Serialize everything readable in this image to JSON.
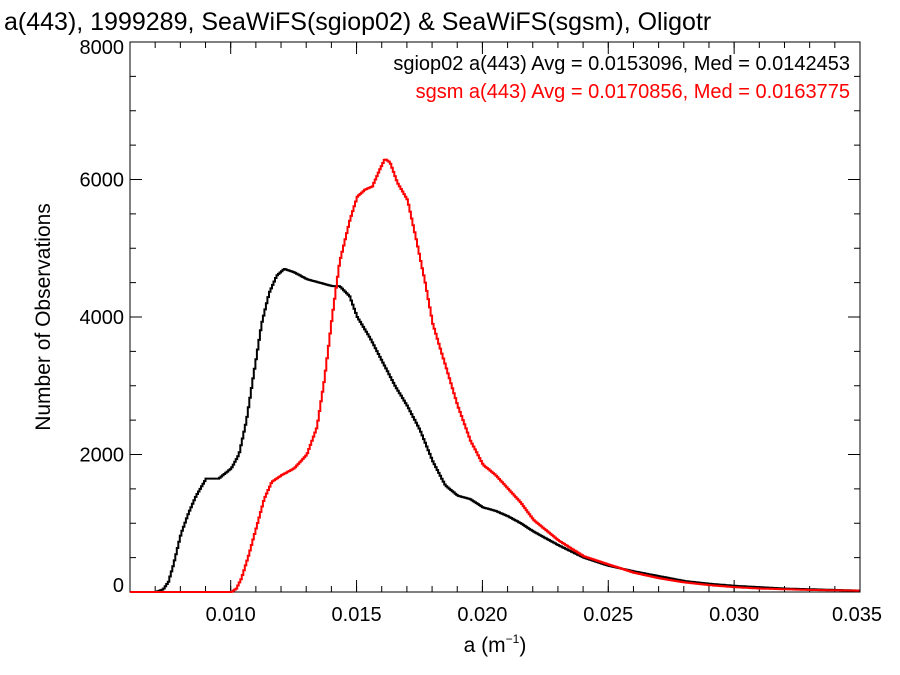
{
  "chart_data": {
    "type": "line",
    "title": "a(443), 1999289, SeaWiFS(sgiop02) & SeaWiFS(sgsm), Oligotr",
    "xlabel": "a (m",
    "xlabel_sup": "−1",
    "xlabel_close": ")",
    "ylabel": "Number of Observations",
    "xlim": [
      0.006,
      0.035
    ],
    "ylim": [
      0,
      8000
    ],
    "xticks": [
      {
        "v": 0.01,
        "label": "0.010"
      },
      {
        "v": 0.015,
        "label": "0.015"
      },
      {
        "v": 0.02,
        "label": "0.020"
      },
      {
        "v": 0.025,
        "label": "0.025"
      },
      {
        "v": 0.03,
        "label": "0.030"
      },
      {
        "v": 0.035,
        "label": "0.035"
      }
    ],
    "yticks": [
      {
        "v": 0,
        "label": "0"
      },
      {
        "v": 2000,
        "label": "2000"
      },
      {
        "v": 4000,
        "label": "4000"
      },
      {
        "v": 6000,
        "label": "6000"
      },
      {
        "v": 8000,
        "label": "8000"
      }
    ],
    "x_minor_step": 0.001,
    "y_minor_step": 500,
    "grid": false,
    "legend_position": "top-right",
    "series": [
      {
        "name": "sgiop02",
        "legend": "sgiop02 a(443) Avg = 0.0153096, Med = 0.0142453",
        "color": "#000000",
        "points": [
          [
            0.006,
            0
          ],
          [
            0.007,
            0
          ],
          [
            0.0073,
            40
          ],
          [
            0.0075,
            150
          ],
          [
            0.0077,
            400
          ],
          [
            0.008,
            850
          ],
          [
            0.0083,
            1150
          ],
          [
            0.0086,
            1400
          ],
          [
            0.009,
            1650
          ],
          [
            0.0095,
            1650
          ],
          [
            0.01,
            1800
          ],
          [
            0.0103,
            2000
          ],
          [
            0.0106,
            2500
          ],
          [
            0.0109,
            3200
          ],
          [
            0.0112,
            3900
          ],
          [
            0.0115,
            4350
          ],
          [
            0.0118,
            4600
          ],
          [
            0.0121,
            4700
          ],
          [
            0.0125,
            4650
          ],
          [
            0.013,
            4550
          ],
          [
            0.0135,
            4500
          ],
          [
            0.014,
            4450
          ],
          [
            0.0143,
            4450
          ],
          [
            0.0147,
            4300
          ],
          [
            0.015,
            4000
          ],
          [
            0.0155,
            3700
          ],
          [
            0.016,
            3350
          ],
          [
            0.0165,
            3000
          ],
          [
            0.017,
            2700
          ],
          [
            0.0175,
            2350
          ],
          [
            0.018,
            1900
          ],
          [
            0.0185,
            1550
          ],
          [
            0.019,
            1400
          ],
          [
            0.0195,
            1350
          ],
          [
            0.02,
            1230
          ],
          [
            0.0205,
            1180
          ],
          [
            0.021,
            1100
          ],
          [
            0.0215,
            1000
          ],
          [
            0.022,
            880
          ],
          [
            0.023,
            680
          ],
          [
            0.024,
            500
          ],
          [
            0.025,
            380
          ],
          [
            0.026,
            300
          ],
          [
            0.027,
            230
          ],
          [
            0.028,
            160
          ],
          [
            0.029,
            120
          ],
          [
            0.03,
            90
          ],
          [
            0.031,
            70
          ],
          [
            0.032,
            50
          ],
          [
            0.033,
            40
          ],
          [
            0.034,
            30
          ],
          [
            0.035,
            20
          ]
        ]
      },
      {
        "name": "sgsm",
        "legend": "sgsm a(443) Avg = 0.0170856, Med = 0.0163775",
        "color": "#ff0000",
        "points": [
          [
            0.006,
            0
          ],
          [
            0.01,
            0
          ],
          [
            0.0102,
            50
          ],
          [
            0.0104,
            200
          ],
          [
            0.0107,
            550
          ],
          [
            0.011,
            950
          ],
          [
            0.0113,
            1350
          ],
          [
            0.0116,
            1600
          ],
          [
            0.012,
            1700
          ],
          [
            0.0125,
            1800
          ],
          [
            0.013,
            2000
          ],
          [
            0.0134,
            2400
          ],
          [
            0.0137,
            3100
          ],
          [
            0.014,
            4000
          ],
          [
            0.0143,
            4800
          ],
          [
            0.0147,
            5400
          ],
          [
            0.015,
            5750
          ],
          [
            0.0153,
            5850
          ],
          [
            0.0156,
            5900
          ],
          [
            0.0159,
            6150
          ],
          [
            0.0161,
            6300
          ],
          [
            0.0163,
            6250
          ],
          [
            0.0166,
            5950
          ],
          [
            0.017,
            5700
          ],
          [
            0.0173,
            5200
          ],
          [
            0.0177,
            4500
          ],
          [
            0.018,
            3900
          ],
          [
            0.0185,
            3300
          ],
          [
            0.019,
            2700
          ],
          [
            0.0195,
            2200
          ],
          [
            0.02,
            1850
          ],
          [
            0.0205,
            1700
          ],
          [
            0.021,
            1500
          ],
          [
            0.0215,
            1300
          ],
          [
            0.022,
            1050
          ],
          [
            0.023,
            750
          ],
          [
            0.024,
            520
          ],
          [
            0.025,
            400
          ],
          [
            0.026,
            280
          ],
          [
            0.027,
            200
          ],
          [
            0.028,
            140
          ],
          [
            0.029,
            100
          ],
          [
            0.03,
            70
          ],
          [
            0.031,
            50
          ],
          [
            0.032,
            40
          ],
          [
            0.033,
            30
          ],
          [
            0.034,
            25
          ],
          [
            0.035,
            20
          ]
        ]
      }
    ]
  }
}
